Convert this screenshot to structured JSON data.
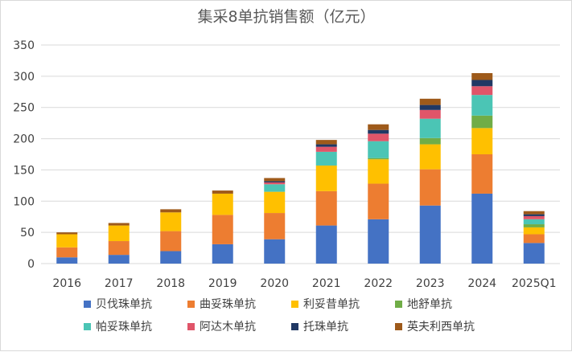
{
  "chart_data": {
    "type": "bar",
    "stacked": true,
    "title": "集采8单抗销售额（亿元）",
    "xlabel": "",
    "ylabel": "",
    "ylim": [
      0,
      350
    ],
    "yticks": [
      0,
      50,
      100,
      150,
      200,
      250,
      300,
      350
    ],
    "grid": true,
    "legend_position": "bottom",
    "categories": [
      "2016",
      "2017",
      "2018",
      "2019",
      "2020",
      "2021",
      "2022",
      "2023",
      "2024",
      "2025Q1"
    ],
    "series": [
      {
        "name": "贝伐珠单抗",
        "color": "#4472C4",
        "values": [
          10,
          14,
          20,
          31,
          39,
          61,
          71,
          93,
          112,
          33
        ]
      },
      {
        "name": "曲妥珠单抗",
        "color": "#ED7D31",
        "values": [
          16,
          22,
          32,
          47,
          42,
          55,
          57,
          58,
          63,
          14
        ]
      },
      {
        "name": "利妥昔单抗",
        "color": "#FFC000",
        "values": [
          21,
          25,
          30,
          34,
          34,
          41,
          39,
          40,
          42,
          11
        ]
      },
      {
        "name": "地舒单抗",
        "color": "#70AD47",
        "values": [
          0,
          0,
          0,
          0,
          0,
          0,
          2,
          10,
          20,
          5
        ]
      },
      {
        "name": "帕妥珠单抗",
        "color": "#4BC5B5",
        "values": [
          0,
          0,
          0,
          0,
          12,
          22,
          27,
          31,
          33,
          8
        ]
      },
      {
        "name": "阿达木单抗",
        "color": "#E05569",
        "values": [
          0,
          0,
          0,
          0,
          3,
          8,
          12,
          14,
          14,
          5
        ]
      },
      {
        "name": "托珠单抗",
        "color": "#203864",
        "values": [
          0,
          0,
          0,
          0,
          2,
          4,
          6,
          8,
          10,
          3
        ]
      },
      {
        "name": "英夫利西单抗",
        "color": "#9E5A1A",
        "values": [
          3,
          4,
          5,
          5,
          5,
          7,
          9,
          10,
          11,
          5
        ]
      }
    ]
  }
}
